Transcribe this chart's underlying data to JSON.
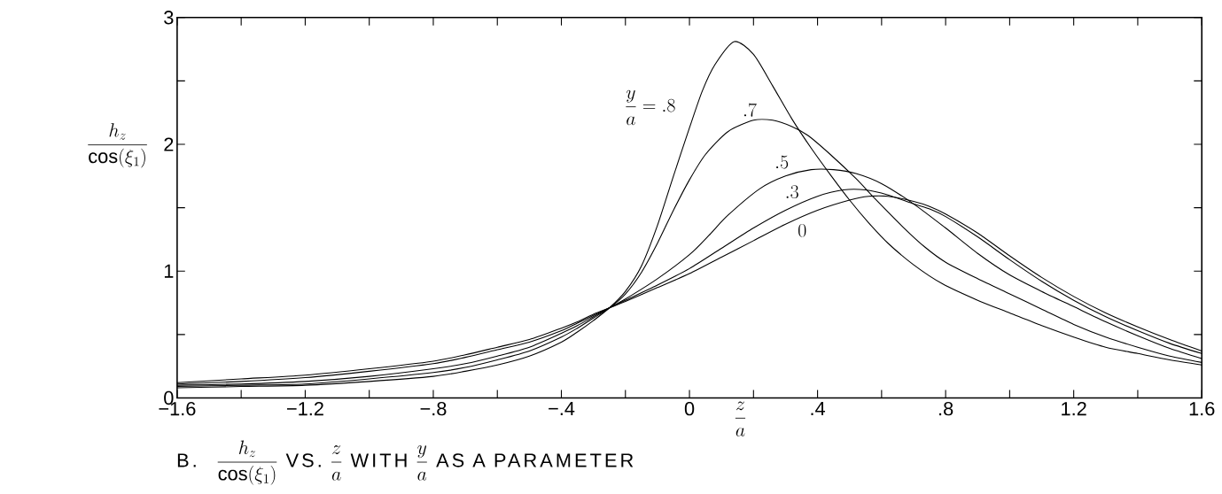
{
  "chart_data": {
    "type": "line",
    "xlabel": "\\frac{z}{a}",
    "ylabel": "\\frac{h_z}{\\cos(\\xi_1)}",
    "annotations": [
      "\\text{B.}\\quad \\frac{h_z}{\\cos(\\xi_1)}\\ \\text{VS.}\\ \\frac{z}{a}\\ \\text{WITH}\\ \\frac{y}{a}\\ \\text{AS A PARAMETER}"
    ],
    "xlim": [
      -1.6,
      1.6
    ],
    "ylim": [
      0,
      3
    ],
    "xticks": [
      {
        "value": -1.6,
        "label": "−1.6"
      },
      {
        "value": -1.4,
        "label": null
      },
      {
        "value": -1.2,
        "label": "−1.2"
      },
      {
        "value": -1.0,
        "label": null
      },
      {
        "value": -0.8,
        "label": "−.8"
      },
      {
        "value": -0.6,
        "label": null
      },
      {
        "value": -0.4,
        "label": "−.4"
      },
      {
        "value": -0.2,
        "label": null
      },
      0,
      {
        "value": 0.2,
        "label": null
      },
      {
        "value": 0.4,
        "label": ".4"
      },
      {
        "value": 0.6,
        "label": null
      },
      {
        "value": 0.8,
        "label": ".8"
      },
      {
        "value": 1.0,
        "label": null
      },
      1.2,
      {
        "value": 1.4,
        "label": null
      },
      1.6
    ],
    "yticks": [
      0,
      {
        "value": 0.5,
        "label": null
      },
      1,
      {
        "value": 1.5,
        "label": null
      },
      2,
      {
        "value": 2.5,
        "label": null
      },
      3
    ],
    "grid": false,
    "legend": false,
    "series": [
      {
        "name": "\\frac{y}{a} = .8",
        "color": "#000000",
        "x": [
          -1.6,
          -1.4,
          -1.2,
          -1.0,
          -0.8,
          -0.7,
          -0.6,
          -0.5,
          -0.4,
          -0.35,
          -0.3,
          -0.25,
          -0.2,
          -0.15,
          -0.1,
          -0.05,
          0,
          0.04,
          0.08,
          0.14,
          0.2,
          0.26,
          0.32,
          0.38,
          0.44,
          0.5,
          0.56,
          0.62,
          0.7,
          0.79,
          0.9,
          1.0,
          1.1,
          1.2,
          1.3,
          1.4,
          1.5,
          1.6
        ],
        "values": [
          0.08,
          0.09,
          0.1,
          0.13,
          0.17,
          0.21,
          0.26,
          0.33,
          0.44,
          0.52,
          0.61,
          0.71,
          0.84,
          1.04,
          1.36,
          1.75,
          2.13,
          2.42,
          2.63,
          2.81,
          2.71,
          2.46,
          2.2,
          1.97,
          1.76,
          1.56,
          1.38,
          1.22,
          1.05,
          0.9,
          0.77,
          0.67,
          0.57,
          0.48,
          0.4,
          0.35,
          0.3,
          0.26
        ]
      },
      {
        "name": ".7",
        "color": "#000000",
        "x": [
          -1.6,
          -1.4,
          -1.2,
          -1.0,
          -0.8,
          -0.7,
          -0.6,
          -0.5,
          -0.4,
          -0.35,
          -0.3,
          -0.25,
          -0.2,
          -0.15,
          -0.1,
          -0.05,
          0,
          0.05,
          0.12,
          0.2,
          0.26,
          0.32,
          0.37,
          0.44,
          0.52,
          0.58,
          0.67,
          0.735,
          0.8,
          0.9,
          1.0,
          1.1,
          1.2,
          1.3,
          1.4,
          1.5,
          1.6
        ],
        "values": [
          0.09,
          0.1,
          0.11,
          0.15,
          0.2,
          0.24,
          0.3,
          0.37,
          0.48,
          0.55,
          0.63,
          0.71,
          0.82,
          0.99,
          1.22,
          1.48,
          1.72,
          1.92,
          2.1,
          2.19,
          2.19,
          2.14,
          2.07,
          1.92,
          1.73,
          1.57,
          1.34,
          1.19,
          1.07,
          0.94,
          0.82,
          0.7,
          0.58,
          0.48,
          0.4,
          0.33,
          0.28
        ]
      },
      {
        "name": ".5",
        "color": "#000000",
        "x": [
          -1.6,
          -1.4,
          -1.2,
          -1.0,
          -0.8,
          -0.7,
          -0.6,
          -0.5,
          -0.4,
          -0.35,
          -0.3,
          -0.25,
          -0.2,
          -0.1,
          0,
          0.06,
          0.12,
          0.22,
          0.3,
          0.38,
          0.45,
          0.52,
          0.6,
          0.7,
          0.8,
          0.9,
          1.0,
          1.1,
          1.2,
          1.3,
          1.4,
          1.5,
          1.6
        ],
        "values": [
          0.1,
          0.11,
          0.13,
          0.17,
          0.23,
          0.27,
          0.33,
          0.4,
          0.51,
          0.57,
          0.64,
          0.71,
          0.78,
          0.94,
          1.13,
          1.28,
          1.44,
          1.65,
          1.75,
          1.8,
          1.8,
          1.77,
          1.69,
          1.53,
          1.34,
          1.14,
          0.97,
          0.84,
          0.72,
          0.6,
          0.49,
          0.39,
          0.31
        ]
      },
      {
        "name": ".3",
        "color": "#000000",
        "x": [
          -1.6,
          -1.4,
          -1.2,
          -1.0,
          -0.8,
          -0.7,
          -0.6,
          -0.5,
          -0.4,
          -0.35,
          -0.3,
          -0.25,
          -0.2,
          -0.1,
          0,
          0.1,
          0.2,
          0.3,
          0.4,
          0.48,
          0.55,
          0.62,
          0.7,
          0.75,
          0.8,
          0.9,
          1.0,
          1.1,
          1.2,
          1.3,
          1.4,
          1.5,
          1.6
        ],
        "values": [
          0.11,
          0.13,
          0.16,
          0.21,
          0.27,
          0.32,
          0.38,
          0.44,
          0.53,
          0.59,
          0.65,
          0.71,
          0.77,
          0.89,
          1.02,
          1.18,
          1.34,
          1.48,
          1.59,
          1.64,
          1.64,
          1.6,
          1.53,
          1.49,
          1.43,
          1.27,
          1.09,
          0.92,
          0.77,
          0.64,
          0.53,
          0.43,
          0.35
        ]
      },
      {
        "name": "0",
        "color": "#000000",
        "x": [
          -1.6,
          -1.4,
          -1.2,
          -1.0,
          -0.8,
          -0.7,
          -0.6,
          -0.5,
          -0.4,
          -0.35,
          -0.3,
          -0.25,
          -0.2,
          -0.1,
          0,
          0.1,
          0.2,
          0.3,
          0.4,
          0.5,
          0.56,
          0.62,
          0.7,
          0.75,
          0.8,
          0.9,
          1.0,
          1.1,
          1.2,
          1.3,
          1.4,
          1.5,
          1.6
        ],
        "values": [
          0.12,
          0.15,
          0.18,
          0.23,
          0.29,
          0.34,
          0.4,
          0.46,
          0.55,
          0.6,
          0.66,
          0.71,
          0.76,
          0.87,
          0.98,
          1.11,
          1.24,
          1.37,
          1.48,
          1.56,
          1.59,
          1.59,
          1.55,
          1.51,
          1.45,
          1.3,
          1.12,
          0.95,
          0.8,
          0.67,
          0.56,
          0.46,
          0.37
        ]
      }
    ]
  }
}
